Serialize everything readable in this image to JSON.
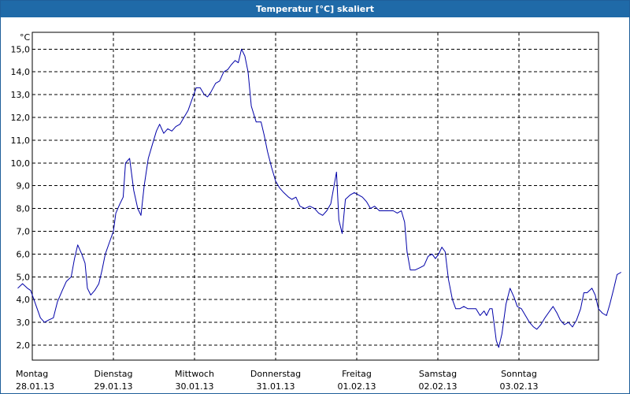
{
  "window": {
    "title": "Temperatur [°C] skaliert"
  },
  "chart_data": {
    "type": "line",
    "ylabel": "°C",
    "ylim": [
      1.3,
      15.5
    ],
    "xlim": [
      0,
      7.12
    ],
    "grid": true,
    "y_ticks": [
      "2,0",
      "3,0",
      "4,0",
      "5,0",
      "6,0",
      "7,0",
      "8,0",
      "9,0",
      "10,0",
      "11,0",
      "12,0",
      "13,0",
      "14,0",
      "15,0"
    ],
    "y_tick_values": [
      2,
      3,
      4,
      5,
      6,
      7,
      8,
      9,
      10,
      11,
      12,
      13,
      14,
      15
    ],
    "x_ticks": [
      {
        "day": "Montag",
        "date": "28.01.13"
      },
      {
        "day": "Dienstag",
        "date": "29.01.13"
      },
      {
        "day": "Mittwoch",
        "date": "30.01.13"
      },
      {
        "day": "Donnerstag",
        "date": "31.01.13"
      },
      {
        "day": "Freitag",
        "date": "01.02.13"
      },
      {
        "day": "Samstag",
        "date": "02.02.13"
      },
      {
        "day": "Sonntag",
        "date": "03.02.13"
      }
    ],
    "x_tick_values": [
      0,
      1,
      2,
      3,
      4,
      5,
      6
    ],
    "series": [
      {
        "color": "#0000a8",
        "points": [
          [
            -0.18,
            4.5
          ],
          [
            -0.12,
            4.7
          ],
          [
            -0.06,
            4.5
          ],
          [
            -0.02,
            4.4
          ],
          [
            0.02,
            4.0
          ],
          [
            0.06,
            3.6
          ],
          [
            0.1,
            3.2
          ],
          [
            0.15,
            3.0
          ],
          [
            0.2,
            3.1
          ],
          [
            0.26,
            3.2
          ],
          [
            0.31,
            3.9
          ],
          [
            0.37,
            4.4
          ],
          [
            0.42,
            4.8
          ],
          [
            0.48,
            5.0
          ],
          [
            0.52,
            5.8
          ],
          [
            0.56,
            6.4
          ],
          [
            0.61,
            6.0
          ],
          [
            0.65,
            5.6
          ],
          [
            0.68,
            4.5
          ],
          [
            0.72,
            4.2
          ],
          [
            0.77,
            4.4
          ],
          [
            0.82,
            4.7
          ],
          [
            0.86,
            5.3
          ],
          [
            0.9,
            6.0
          ],
          [
            0.95,
            6.5
          ],
          [
            1.0,
            7.0
          ],
          [
            1.03,
            7.8
          ],
          [
            1.08,
            8.2
          ],
          [
            1.12,
            8.5
          ],
          [
            1.15,
            10.0
          ],
          [
            1.2,
            10.2
          ],
          [
            1.25,
            8.8
          ],
          [
            1.3,
            8.0
          ],
          [
            1.34,
            7.7
          ],
          [
            1.38,
            9.0
          ],
          [
            1.43,
            10.2
          ],
          [
            1.48,
            10.8
          ],
          [
            1.53,
            11.4
          ],
          [
            1.57,
            11.7
          ],
          [
            1.62,
            11.3
          ],
          [
            1.67,
            11.5
          ],
          [
            1.72,
            11.4
          ],
          [
            1.77,
            11.6
          ],
          [
            1.82,
            11.7
          ],
          [
            1.87,
            12.0
          ],
          [
            1.92,
            12.3
          ],
          [
            1.97,
            12.8
          ],
          [
            2.02,
            13.3
          ],
          [
            2.07,
            13.3
          ],
          [
            2.12,
            13.0
          ],
          [
            2.16,
            12.9
          ],
          [
            2.2,
            13.1
          ],
          [
            2.26,
            13.5
          ],
          [
            2.31,
            13.6
          ],
          [
            2.36,
            14.0
          ],
          [
            2.41,
            14.1
          ],
          [
            2.45,
            14.3
          ],
          [
            2.5,
            14.5
          ],
          [
            2.54,
            14.4
          ],
          [
            2.58,
            15.0
          ],
          [
            2.62,
            14.7
          ],
          [
            2.66,
            14.0
          ],
          [
            2.7,
            12.5
          ],
          [
            2.76,
            11.8
          ],
          [
            2.82,
            11.8
          ],
          [
            2.86,
            11.2
          ],
          [
            2.9,
            10.5
          ],
          [
            2.95,
            9.8
          ],
          [
            3.0,
            9.2
          ],
          [
            3.05,
            8.9
          ],
          [
            3.1,
            8.7
          ],
          [
            3.16,
            8.5
          ],
          [
            3.2,
            8.4
          ],
          [
            3.25,
            8.5
          ],
          [
            3.3,
            8.1
          ],
          [
            3.36,
            8.0
          ],
          [
            3.42,
            8.1
          ],
          [
            3.48,
            8.0
          ],
          [
            3.53,
            7.8
          ],
          [
            3.58,
            7.7
          ],
          [
            3.63,
            7.9
          ],
          [
            3.68,
            8.2
          ],
          [
            3.72,
            9.0
          ],
          [
            3.75,
            9.6
          ],
          [
            3.78,
            7.5
          ],
          [
            3.82,
            6.9
          ],
          [
            3.86,
            8.4
          ],
          [
            3.92,
            8.6
          ],
          [
            3.97,
            8.7
          ],
          [
            4.02,
            8.6
          ],
          [
            4.07,
            8.5
          ],
          [
            4.12,
            8.3
          ],
          [
            4.17,
            8.0
          ],
          [
            4.22,
            8.1
          ],
          [
            4.28,
            7.9
          ],
          [
            4.34,
            7.9
          ],
          [
            4.4,
            7.9
          ],
          [
            4.45,
            7.9
          ],
          [
            4.5,
            7.8
          ],
          [
            4.55,
            7.9
          ],
          [
            4.59,
            7.4
          ],
          [
            4.62,
            6.1
          ],
          [
            4.66,
            5.3
          ],
          [
            4.72,
            5.3
          ],
          [
            4.78,
            5.4
          ],
          [
            4.83,
            5.5
          ],
          [
            4.88,
            5.9
          ],
          [
            4.93,
            6.0
          ],
          [
            4.97,
            5.8
          ],
          [
            5.01,
            6.0
          ],
          [
            5.05,
            6.3
          ],
          [
            5.09,
            6.1
          ],
          [
            5.13,
            4.9
          ],
          [
            5.18,
            4.0
          ],
          [
            5.22,
            3.6
          ],
          [
            5.27,
            3.6
          ],
          [
            5.32,
            3.7
          ],
          [
            5.37,
            3.6
          ],
          [
            5.42,
            3.6
          ],
          [
            5.47,
            3.6
          ],
          [
            5.52,
            3.3
          ],
          [
            5.57,
            3.5
          ],
          [
            5.6,
            3.3
          ],
          [
            5.64,
            3.6
          ],
          [
            5.67,
            3.6
          ],
          [
            5.72,
            2.2
          ],
          [
            5.75,
            1.9
          ],
          [
            5.79,
            2.5
          ],
          [
            5.84,
            3.8
          ],
          [
            5.89,
            4.5
          ],
          [
            5.94,
            4.1
          ],
          [
            5.98,
            3.7
          ],
          [
            6.03,
            3.6
          ],
          [
            6.08,
            3.3
          ],
          [
            6.13,
            3.0
          ],
          [
            6.18,
            2.8
          ],
          [
            6.22,
            2.7
          ],
          [
            6.27,
            2.9
          ],
          [
            6.32,
            3.2
          ],
          [
            6.38,
            3.5
          ],
          [
            6.42,
            3.7
          ],
          [
            6.47,
            3.4
          ],
          [
            6.51,
            3.1
          ],
          [
            6.56,
            2.9
          ],
          [
            6.61,
            3.0
          ],
          [
            6.66,
            2.8
          ],
          [
            6.71,
            3.1
          ],
          [
            6.76,
            3.6
          ],
          [
            6.8,
            4.3
          ],
          [
            6.84,
            4.3
          ],
          [
            6.9,
            4.5
          ],
          [
            6.94,
            4.2
          ],
          [
            6.98,
            3.6
          ],
          [
            7.03,
            3.4
          ],
          [
            7.08,
            3.3
          ],
          [
            7.12,
            3.8
          ],
          [
            7.17,
            4.5
          ],
          [
            7.21,
            5.1
          ],
          [
            7.26,
            5.2
          ]
        ]
      }
    ]
  }
}
